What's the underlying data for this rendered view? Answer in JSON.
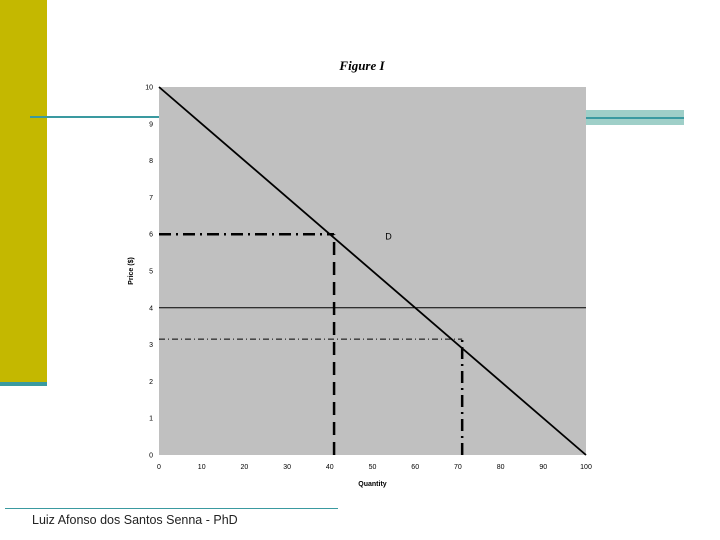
{
  "slide": {
    "footer": "Luiz Afonso dos Santos Senna - PhD",
    "accent_color": "#c4b800",
    "rule_color": "#3a9aa0"
  },
  "chart_data": {
    "type": "line",
    "title": "Figure I",
    "xlabel": "Quantity",
    "ylabel": "Price ($)",
    "xlim": [
      0,
      100
    ],
    "ylim": [
      0,
      10
    ],
    "x_ticks": [
      0,
      10,
      20,
      30,
      40,
      50,
      60,
      70,
      80,
      90,
      100
    ],
    "y_ticks": [
      0,
      1,
      2,
      3,
      4,
      5,
      6,
      7,
      8,
      9,
      10
    ],
    "plot_background": "#c0c0c0",
    "grid": false,
    "legend": "none",
    "series": [
      {
        "values": [
          [
            0,
            10
          ],
          [
            100,
            0
          ]
        ],
        "style": "solid"
      }
    ],
    "horizontal_lines": [
      {
        "y": 4,
        "x_from": 0,
        "x_to": 100,
        "style": "solid"
      },
      {
        "y": 6,
        "x_from": 0,
        "x_to": 41,
        "style": "dash-dot"
      },
      {
        "y": 3.15,
        "x_from": 0,
        "x_to": 71,
        "style": "dash-dot-thin"
      }
    ],
    "vertical_lines": [
      {
        "x": 41,
        "y_from": 0,
        "y_to": 6,
        "style": "dashed"
      },
      {
        "x": 71,
        "y_from": 0,
        "y_to": 3.15,
        "style": "dash-dot"
      }
    ],
    "annotations": [
      {
        "text": "D",
        "x": 53,
        "y": 5.85
      }
    ]
  }
}
